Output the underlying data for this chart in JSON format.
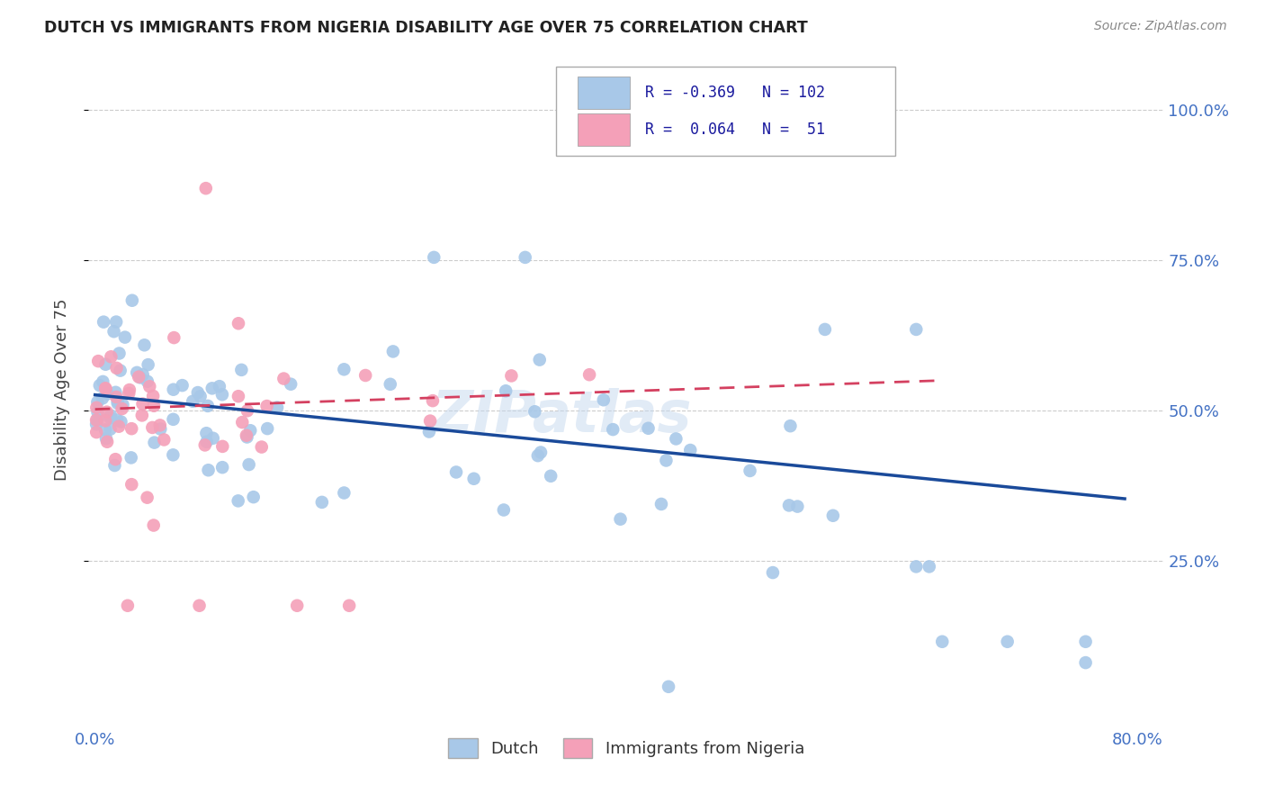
{
  "title": "DUTCH VS IMMIGRANTS FROM NIGERIA DISABILITY AGE OVER 75 CORRELATION CHART",
  "source": "Source: ZipAtlas.com",
  "ylabel": "Disability Age Over 75",
  "legend_R_dutch": "-0.369",
  "legend_N_dutch": "102",
  "legend_R_nigeria": "0.064",
  "legend_N_nigeria": "51",
  "dutch_color": "#a8c8e8",
  "nigeria_color": "#f4a0b8",
  "dutch_line_color": "#1a4a9a",
  "nigeria_line_color": "#d44060",
  "background_color": "#ffffff",
  "watermark": "ZIPatlas",
  "grid_color": "#cccccc",
  "tick_color": "#4472c4",
  "title_color": "#222222",
  "source_color": "#888888",
  "legend_text_color": "#1a1a9e"
}
